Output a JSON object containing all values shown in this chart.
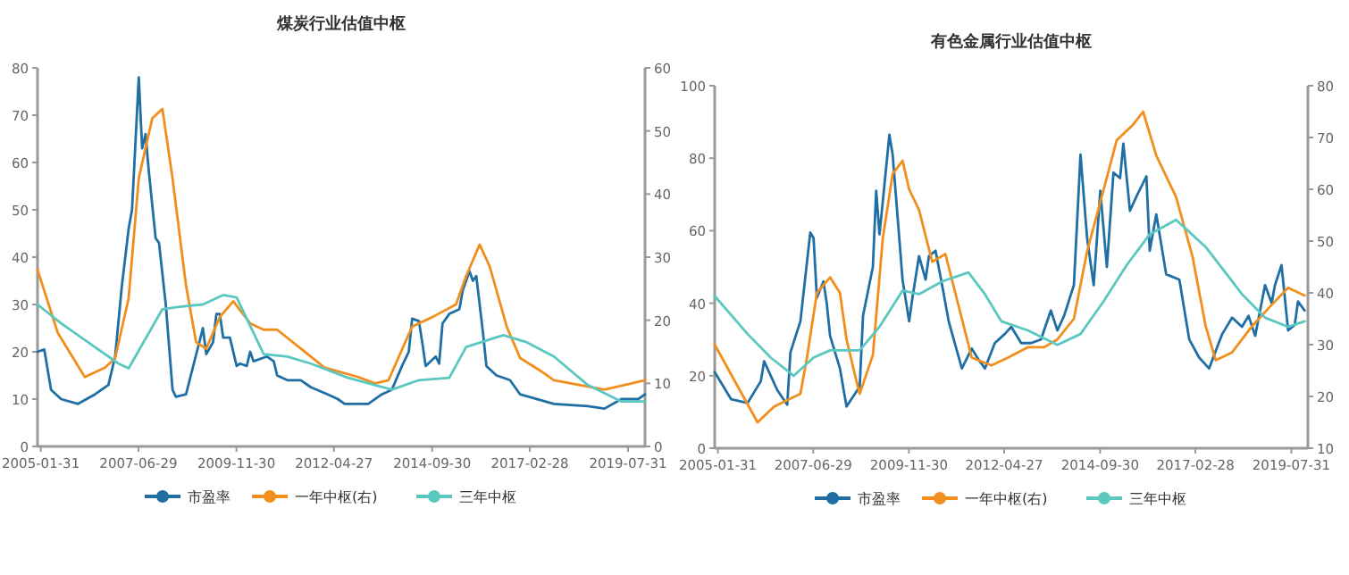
{
  "chart_data": [
    {
      "type": "line",
      "title": "煤炭行业估值中枢",
      "xlim": [
        "2005-01",
        "2020-01"
      ],
      "xticks": [
        "2005-01-31",
        "2007-06-29",
        "2009-11-30",
        "2012-04-27",
        "2014-09-30",
        "2017-02-28",
        "2019-07-31"
      ],
      "ylim": [
        0,
        80
      ],
      "yticks": [
        0,
        10,
        20,
        30,
        40,
        50,
        60,
        70,
        80
      ],
      "y2lim": [
        0,
        60
      ],
      "y2ticks": [
        0,
        10,
        20,
        30,
        40,
        50,
        60
      ],
      "legend": "bottom",
      "grid": false,
      "series": [
        {
          "name": "市盈率",
          "color": "#1f6fa5",
          "x": [
            "2005-01",
            "2005-03",
            "2005-05",
            "2005-08",
            "2006-01",
            "2006-06",
            "2006-10",
            "2006-12",
            "2007-02",
            "2007-04",
            "2007-05",
            "2007-07",
            "2007-08",
            "2007-09",
            "2007-10",
            "2007-12",
            "2008-01",
            "2008-03",
            "2008-04",
            "2008-05",
            "2008-06",
            "2008-09",
            "2009-02",
            "2009-03",
            "2009-05",
            "2009-06",
            "2009-07",
            "2009-08",
            "2009-10",
            "2009-12",
            "2010-01",
            "2010-03",
            "2010-04",
            "2010-05",
            "2010-09",
            "2010-11",
            "2010-12",
            "2011-03",
            "2011-07",
            "2011-10",
            "2012-03",
            "2012-06",
            "2012-08",
            "2013-03",
            "2013-07",
            "2013-10",
            "2014-01",
            "2014-03",
            "2014-04",
            "2014-06",
            "2014-07",
            "2014-08",
            "2014-11",
            "2014-12",
            "2015-01",
            "2015-03",
            "2015-06",
            "2015-07",
            "2015-09",
            "2015-10",
            "2015-11",
            "2016-01",
            "2016-02",
            "2016-05",
            "2016-09",
            "2016-12",
            "2017-10",
            "2018-08",
            "2019-01",
            "2019-06",
            "2019-11",
            "2020-01"
          ],
          "values": [
            20,
            20.5,
            12,
            10,
            9,
            11,
            13,
            19,
            34,
            46,
            50,
            78,
            63,
            66,
            58,
            44,
            43,
            30,
            21,
            12,
            10.5,
            11,
            25,
            19.5,
            22,
            28,
            28,
            23,
            23,
            17,
            17.5,
            17,
            20,
            18,
            19,
            18,
            15,
            14,
            14,
            12.5,
            11,
            10,
            9,
            9,
            11,
            12,
            17,
            20,
            27,
            26.5,
            22,
            17,
            19,
            17.5,
            26,
            28,
            29,
            33,
            37,
            35,
            36,
            24,
            17,
            15,
            14,
            11,
            9,
            8.5,
            8,
            10,
            10,
            11
          ]
        },
        {
          "name": "一年中枢(右)",
          "color": "#f28e1c",
          "axis": "y2",
          "x": [
            "2005-01",
            "2005-07",
            "2006-03",
            "2006-09",
            "2006-12",
            "2007-04",
            "2007-07",
            "2007-11",
            "2008-02",
            "2008-05",
            "2008-09",
            "2008-12",
            "2009-03",
            "2009-07",
            "2009-11",
            "2010-04",
            "2010-08",
            "2010-12",
            "2011-07",
            "2012-02",
            "2012-12",
            "2013-05",
            "2013-09",
            "2014-04",
            "2014-10",
            "2015-05",
            "2015-08",
            "2015-12",
            "2016-03",
            "2016-08",
            "2016-12",
            "2017-06",
            "2017-10",
            "2019-01",
            "2020-01"
          ],
          "values": [
            28,
            18,
            11,
            12.5,
            14,
            23.5,
            42.5,
            52,
            53.5,
            42.5,
            25.5,
            16.5,
            15.5,
            20.5,
            23,
            19.5,
            18.5,
            18.5,
            15.5,
            12.5,
            11,
            10,
            10.5,
            19,
            20.5,
            22.5,
            27,
            32,
            28.5,
            19,
            14,
            12,
            10.5,
            9,
            10.5
          ]
        },
        {
          "name": "三年中枢",
          "color": "#5bc8c0",
          "x": [
            "2005-01",
            "2005-08",
            "2006-04",
            "2007-01",
            "2007-04",
            "2007-08",
            "2008-02",
            "2008-07",
            "2009-02",
            "2009-08",
            "2009-12",
            "2010-08",
            "2011-03",
            "2011-10",
            "2012-09",
            "2013-10",
            "2014-06",
            "2015-03",
            "2015-08",
            "2016-07",
            "2017-02",
            "2017-10",
            "2018-08",
            "2019-06",
            "2020-01"
          ],
          "values": [
            30,
            26,
            22,
            17.5,
            16.5,
            21.5,
            29,
            29.5,
            30,
            32,
            31.5,
            19.5,
            19,
            17.5,
            14.5,
            12,
            14,
            14.5,
            21,
            23.5,
            22,
            19,
            13,
            9.5,
            9.5
          ]
        }
      ]
    },
    {
      "type": "line",
      "title": "有色金属行业估值中枢",
      "xlim": [
        "2005-01",
        "2020-01"
      ],
      "xticks": [
        "2005-01-31",
        "2007-06-29",
        "2009-11-30",
        "2012-04-27",
        "2014-09-30",
        "2017-02-28",
        "2019-07-31"
      ],
      "ylim": [
        0,
        100
      ],
      "yticks": [
        0,
        20,
        40,
        60,
        80,
        100
      ],
      "y2lim": [
        10,
        80
      ],
      "y2ticks": [
        10,
        20,
        30,
        40,
        50,
        60,
        70,
        80
      ],
      "legend": "bottom",
      "grid": false,
      "series": [
        {
          "name": "市盈率",
          "color": "#1f6fa5",
          "x": [
            "2005-01",
            "2005-06",
            "2005-11",
            "2006-03",
            "2006-04",
            "2006-08",
            "2006-11",
            "2006-12",
            "2007-03",
            "2007-06",
            "2007-07",
            "2007-08",
            "2007-10",
            "2007-11",
            "2007-12",
            "2008-03",
            "2008-05",
            "2008-09",
            "2008-10",
            "2009-01",
            "2009-02",
            "2009-03",
            "2009-04",
            "2009-06",
            "2009-07",
            "2009-09",
            "2009-10",
            "2009-12",
            "2010-01",
            "2010-03",
            "2010-05",
            "2010-06",
            "2010-08",
            "2010-10",
            "2010-12",
            "2011-04",
            "2011-07",
            "2011-09",
            "2011-11",
            "2012-02",
            "2012-05",
            "2012-07",
            "2012-10",
            "2013-01",
            "2013-04",
            "2013-07",
            "2013-09",
            "2013-11",
            "2014-02",
            "2014-04",
            "2014-06",
            "2014-08",
            "2014-10",
            "2014-12",
            "2015-02",
            "2015-04",
            "2015-05",
            "2015-07",
            "2015-09",
            "2015-12",
            "2016-01",
            "2016-03",
            "2016-06",
            "2016-10",
            "2017-01",
            "2017-04",
            "2017-07",
            "2017-11",
            "2018-02",
            "2018-05",
            "2018-07",
            "2018-09",
            "2018-12",
            "2019-02",
            "2019-03",
            "2019-05",
            "2019-07",
            "2019-09",
            "2019-10",
            "2019-12"
          ],
          "values": [
            21,
            13.5,
            12.5,
            18.5,
            24,
            16,
            12,
            26.5,
            35,
            59.5,
            58,
            41.5,
            46,
            40,
            31,
            22,
            11.5,
            17,
            36.5,
            50,
            71,
            59,
            68,
            86.5,
            81,
            58,
            46.5,
            35,
            41.5,
            53,
            46.5,
            53,
            54.5,
            45,
            35,
            22,
            27.5,
            24.5,
            22,
            29,
            31.5,
            33.5,
            29,
            29,
            30,
            38,
            32.5,
            36.5,
            45,
            81,
            58,
            45,
            71,
            50,
            76,
            74.5,
            84,
            65.5,
            69.5,
            75,
            54.5,
            64.5,
            48,
            46.5,
            30,
            25,
            22,
            31.5,
            36,
            33.5,
            36.5,
            31,
            45,
            40,
            45,
            50.5,
            32.5,
            34,
            40.5,
            38
          ]
        },
        {
          "name": "一年中枢(右)",
          "color": "#f28e1c",
          "axis": "y2",
          "x": [
            "2005-01",
            "2006-02",
            "2006-07",
            "2007-03",
            "2007-05",
            "2007-08",
            "2007-12",
            "2008-03",
            "2008-05",
            "2008-08",
            "2008-09",
            "2009-01",
            "2009-02",
            "2009-04",
            "2009-07",
            "2009-10",
            "2009-12",
            "2010-03",
            "2010-07",
            "2010-11",
            "2011-02",
            "2011-07",
            "2012-01",
            "2012-06",
            "2012-12",
            "2013-05",
            "2013-09",
            "2014-02",
            "2014-06",
            "2014-10",
            "2015-03",
            "2015-08",
            "2015-11",
            "2016-03",
            "2016-09",
            "2017-02",
            "2017-06",
            "2017-09",
            "2018-02",
            "2018-08",
            "2019-01",
            "2019-07",
            "2019-12"
          ],
          "values": [
            30,
            15,
            18,
            20.5,
            27.5,
            40,
            43,
            40,
            31,
            23,
            20.5,
            28,
            35.5,
            50.5,
            63,
            65.5,
            60,
            56,
            46,
            47.5,
            40,
            27.5,
            26,
            27.5,
            29.5,
            29.5,
            31,
            35,
            48,
            57.5,
            69.5,
            72.5,
            75,
            66.5,
            58.5,
            47,
            33.5,
            27,
            28.5,
            33.5,
            37,
            41,
            39.5
          ]
        },
        {
          "name": "三年中枢",
          "color": "#5bc8c0",
          "x": [
            "2005-01",
            "2005-11",
            "2006-06",
            "2007-01",
            "2007-07",
            "2007-12",
            "2008-09",
            "2009-03",
            "2009-10",
            "2010-03",
            "2010-10",
            "2011-06",
            "2011-11",
            "2012-04",
            "2012-12",
            "2013-09",
            "2014-04",
            "2014-11",
            "2015-06",
            "2016-01",
            "2016-09",
            "2017-06",
            "2018-05",
            "2018-12",
            "2019-07",
            "2019-12"
          ],
          "values": [
            42,
            31.5,
            25,
            20,
            25,
            27,
            27,
            33.5,
            43.5,
            42.5,
            46,
            48.5,
            42.5,
            35,
            32.5,
            28.5,
            31.5,
            40.5,
            50.5,
            59,
            63,
            55.5,
            42.5,
            36,
            33.5,
            35
          ]
        }
      ]
    }
  ]
}
